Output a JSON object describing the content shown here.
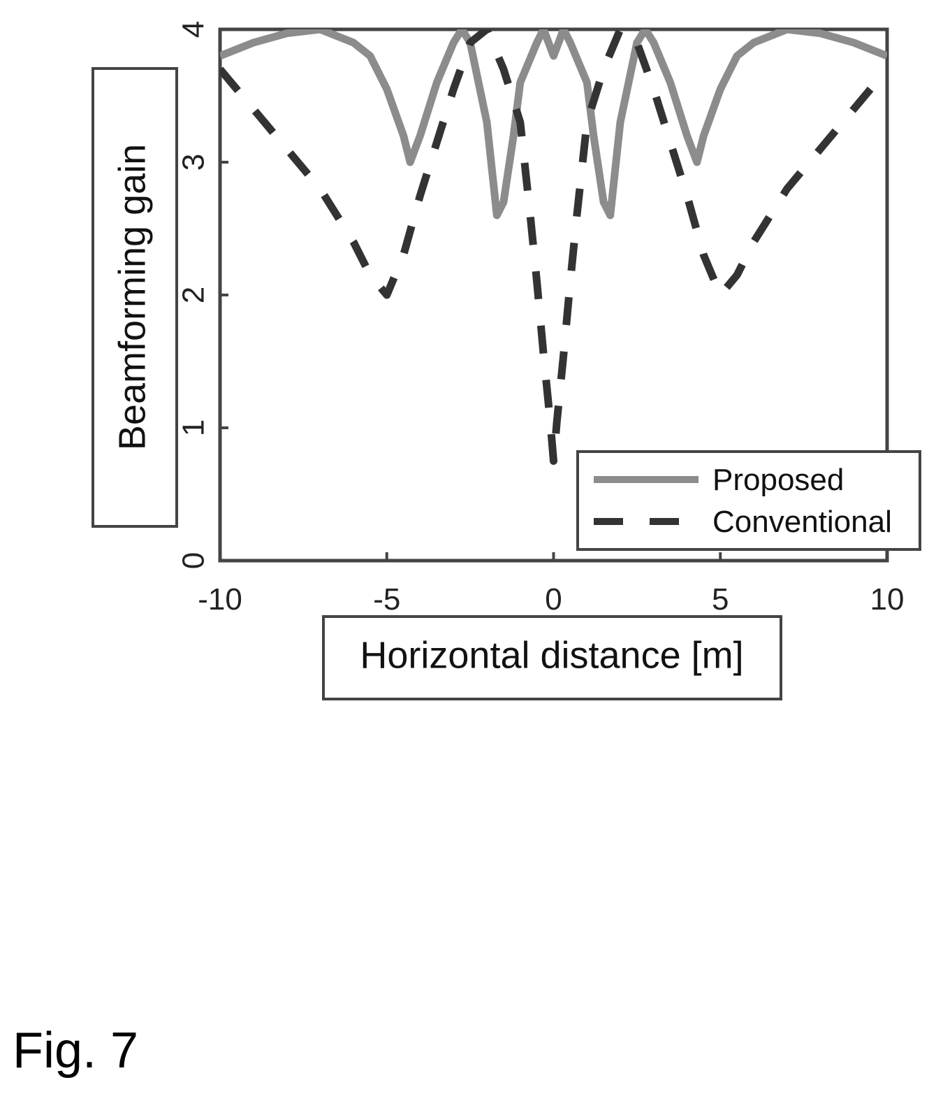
{
  "chart_data": {
    "type": "line",
    "xlabel": "Horizontal distance [m]",
    "ylabel": "Beamforming gain",
    "xlim": [
      -10,
      10
    ],
    "ylim": [
      0,
      4
    ],
    "xticks": [
      "-10",
      "-5",
      "0",
      "5",
      "10"
    ],
    "yticks": [
      "0",
      "1",
      "2",
      "3",
      "4"
    ],
    "grid": false,
    "legend_position": "bottom-right",
    "series": [
      {
        "name": "Proposed",
        "style": "solid",
        "color": "#8c8c8c",
        "x": [
          -10,
          -9,
          -8,
          -7,
          -6,
          -5.5,
          -5,
          -4.5,
          -4.3,
          -4,
          -3.5,
          -3,
          -2.75,
          -2.5,
          -2,
          -1.7,
          -1.5,
          -1.2,
          -1,
          -0.5,
          -0.3,
          0,
          0.3,
          0.5,
          1,
          1.2,
          1.5,
          1.7,
          2,
          2.5,
          2.75,
          3,
          3.5,
          4,
          4.3,
          4.5,
          5,
          5.5,
          6,
          7,
          8,
          9,
          10
        ],
        "y": [
          3.8,
          3.9,
          3.97,
          4.0,
          3.9,
          3.8,
          3.55,
          3.2,
          3.0,
          3.2,
          3.6,
          3.9,
          4.0,
          3.9,
          3.3,
          2.6,
          2.7,
          3.2,
          3.6,
          3.9,
          4.0,
          3.8,
          4.0,
          3.9,
          3.6,
          3.2,
          2.7,
          2.6,
          3.3,
          3.9,
          4.0,
          3.9,
          3.6,
          3.2,
          3.0,
          3.2,
          3.55,
          3.8,
          3.9,
          4.0,
          3.97,
          3.9,
          3.8
        ]
      },
      {
        "name": "Conventional",
        "style": "dashed",
        "color": "#333333",
        "x": [
          -10,
          -9,
          -8,
          -7,
          -6,
          -5.5,
          -5,
          -4.5,
          -4,
          -3.5,
          -3,
          -2.5,
          -2,
          -1.5,
          -1,
          -0.7,
          -0.5,
          -0.3,
          -0.1,
          0,
          0.1,
          0.3,
          0.5,
          0.7,
          1,
          1.5,
          2,
          2.5,
          3,
          3.5,
          4,
          4.5,
          5,
          5.5,
          6,
          7,
          8,
          9,
          10
        ],
        "y": [
          3.7,
          3.4,
          3.1,
          2.8,
          2.4,
          2.15,
          2.0,
          2.3,
          2.75,
          3.15,
          3.55,
          3.9,
          4.0,
          3.7,
          3.3,
          2.6,
          2.1,
          1.55,
          1.05,
          0.75,
          1.05,
          1.55,
          2.1,
          2.6,
          3.3,
          3.7,
          4.0,
          3.9,
          3.55,
          3.15,
          2.75,
          2.3,
          2.0,
          2.15,
          2.4,
          2.8,
          3.1,
          3.4,
          3.7
        ]
      }
    ]
  },
  "figure": {
    "caption": "Fig. 7"
  }
}
